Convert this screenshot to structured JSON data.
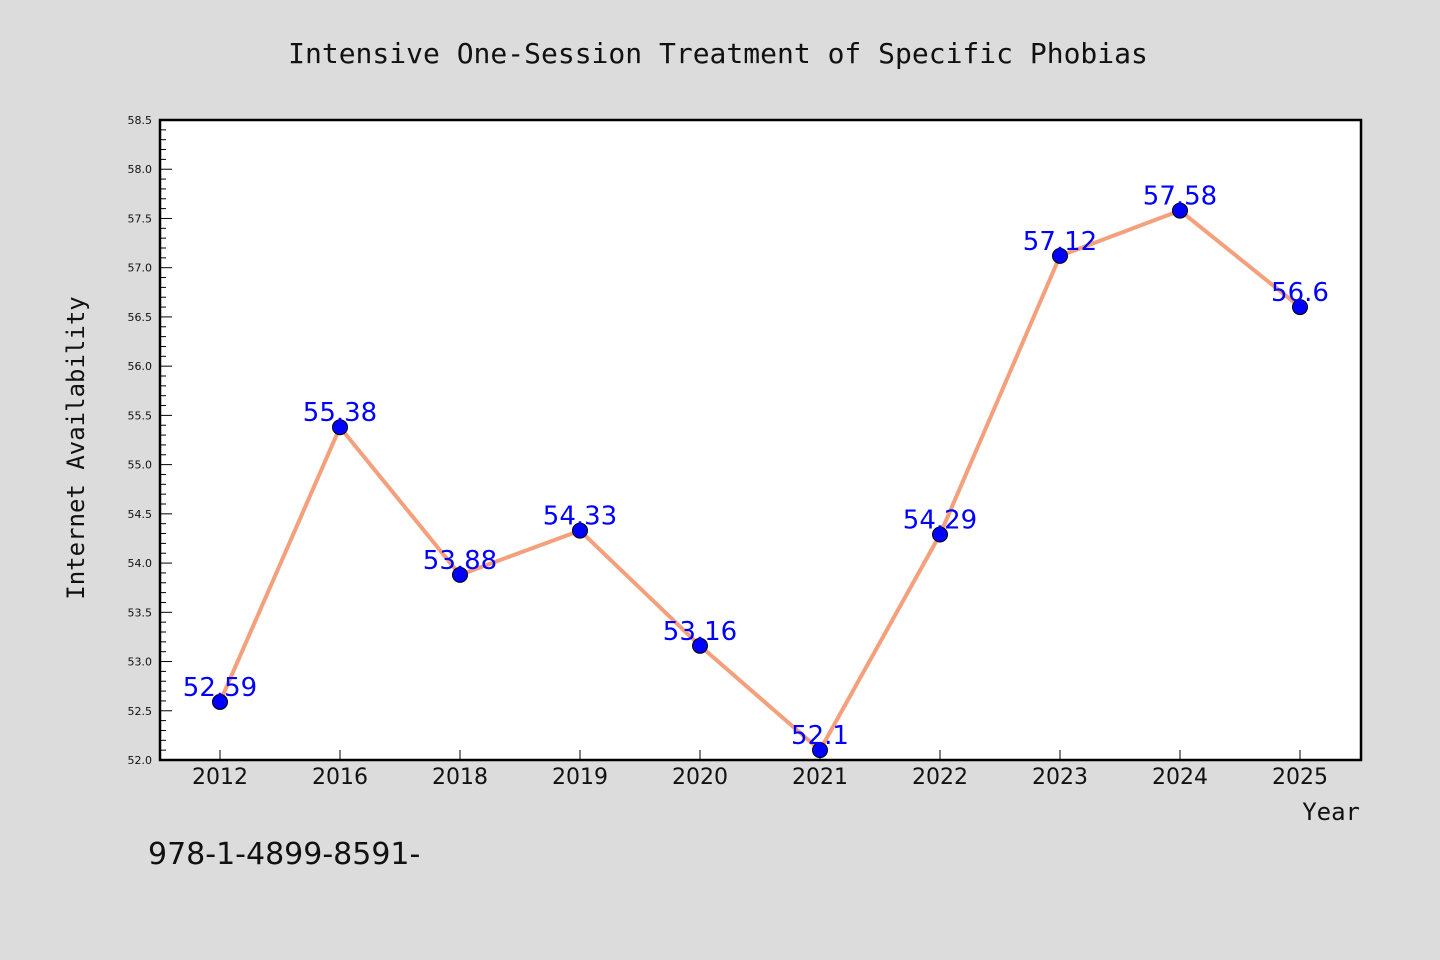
{
  "chart_data": {
    "type": "line",
    "title": "Intensive One-Session Treatment of Specific Phobias",
    "xlabel": "Year",
    "ylabel": "Internet Availability",
    "categories": [
      "2012",
      "2016",
      "2018",
      "2019",
      "2020",
      "2021",
      "2022",
      "2023",
      "2024",
      "2025"
    ],
    "series": [
      {
        "values": [
          52.59,
          55.38,
          53.88,
          54.33,
          53.16,
          52.1,
          54.29,
          57.12,
          57.58,
          56.6
        ],
        "data_labels": [
          "52.59",
          "55.38",
          "53.88",
          "54.33",
          "53.16",
          "52.1",
          "54.29",
          "57.12",
          "57.58",
          "56.6"
        ]
      }
    ],
    "ylim": [
      52.0,
      58.5
    ],
    "y_ticks": [
      "52.0",
      "52.5",
      "53.0",
      "53.5",
      "54.0",
      "54.5",
      "55.0",
      "55.5",
      "56.0",
      "56.5",
      "57.0",
      "57.5",
      "58.0",
      "58.5"
    ],
    "grid": false,
    "legend": "none",
    "line_color": "#f4a07c",
    "marker_color": "#0000ff",
    "label_color": "#0000ff",
    "plot_background": "#ffffff",
    "figure_background": "#dcdcdc"
  },
  "footer": {
    "isbn": "978-1-4899-8591-"
  }
}
